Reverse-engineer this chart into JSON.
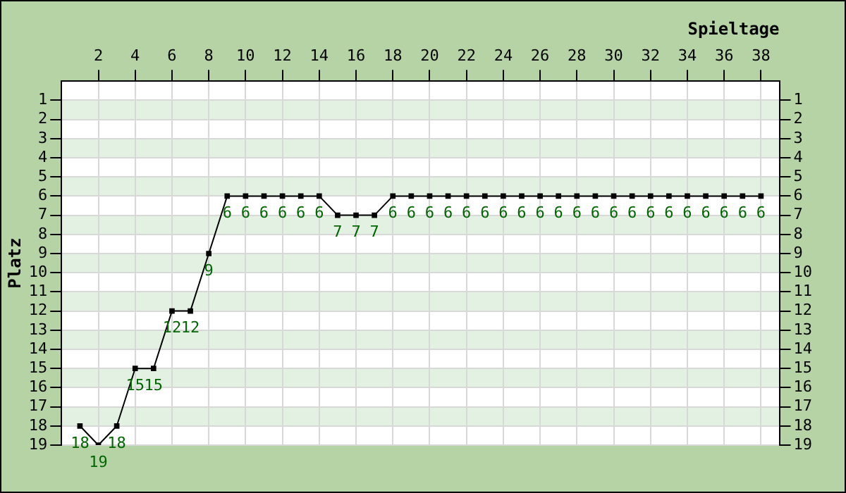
{
  "chart_data": {
    "type": "line",
    "xlabel": "Spieltage",
    "ylabel": "Platz",
    "x": [
      1,
      2,
      3,
      4,
      5,
      6,
      7,
      8,
      9,
      10,
      11,
      12,
      13,
      14,
      15,
      16,
      17,
      18,
      19,
      20,
      21,
      22,
      23,
      24,
      25,
      26,
      27,
      28,
      29,
      30,
      31,
      32,
      33,
      34,
      35,
      36,
      37,
      38
    ],
    "series": [
      {
        "color": "#000000",
        "values": [
          18,
          19,
          18,
          15,
          15,
          12,
          12,
          9,
          6,
          6,
          6,
          6,
          6,
          6,
          7,
          7,
          7,
          6,
          6,
          6,
          6,
          6,
          6,
          6,
          6,
          6,
          6,
          6,
          6,
          6,
          6,
          6,
          6,
          6,
          6,
          6,
          6,
          6
        ]
      }
    ],
    "xlim": [
      0,
      39
    ],
    "xticks": [
      2,
      4,
      6,
      8,
      10,
      12,
      14,
      16,
      18,
      20,
      22,
      24,
      26,
      28,
      30,
      32,
      34,
      36,
      38
    ],
    "ylim": [
      19,
      0
    ],
    "yticks": [
      1,
      2,
      3,
      4,
      5,
      6,
      7,
      8,
      9,
      10,
      11,
      12,
      13,
      14,
      15,
      16,
      17,
      18,
      19
    ],
    "y2lim": [
      19,
      0
    ],
    "y2ticks": [
      1,
      2,
      3,
      4,
      5,
      6,
      7,
      8,
      9,
      10,
      11,
      12,
      13,
      14,
      15,
      16,
      17,
      18,
      19
    ],
    "bands": [
      {
        "axis": "y",
        "from": 1,
        "to": 2,
        "color": "#e3f1e3"
      },
      {
        "axis": "y",
        "from": 3,
        "to": 4,
        "color": "#e3f1e3"
      },
      {
        "axis": "y",
        "from": 5,
        "to": 6,
        "color": "#e3f1e3"
      },
      {
        "axis": "y",
        "from": 7,
        "to": 8,
        "color": "#e3f1e3"
      },
      {
        "axis": "y",
        "from": 9,
        "to": 10,
        "color": "#e3f1e3"
      },
      {
        "axis": "y",
        "from": 11,
        "to": 12,
        "color": "#e3f1e3"
      },
      {
        "axis": "y",
        "from": 13,
        "to": 14,
        "color": "#e3f1e3"
      },
      {
        "axis": "y",
        "from": 15,
        "to": 16,
        "color": "#e3f1e3"
      },
      {
        "axis": "y",
        "from": 17,
        "to": 18,
        "color": "#e3f1e3"
      }
    ],
    "grid": true,
    "legend": false,
    "marker": "square",
    "line_style": "solid",
    "data_labels": true
  }
}
